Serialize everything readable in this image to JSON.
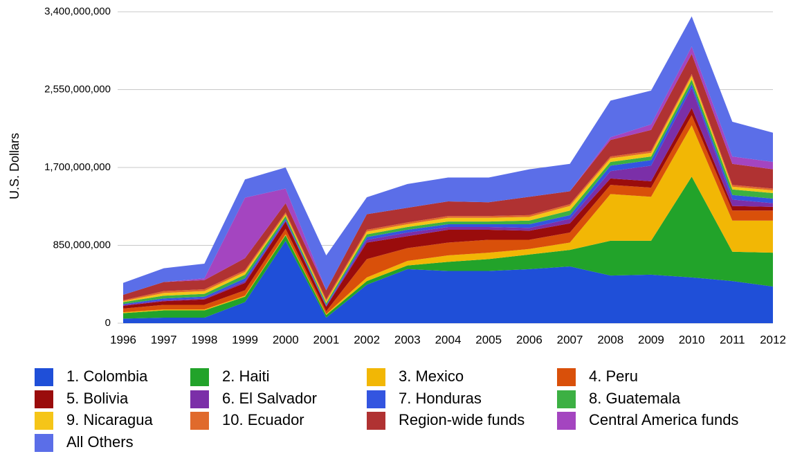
{
  "chart_data": {
    "type": "stacked_area",
    "y_label": "U.S. Dollars",
    "x": [
      1996,
      1997,
      1998,
      1999,
      2000,
      2001,
      2002,
      2003,
      2004,
      2005,
      2006,
      2007,
      2008,
      2009,
      2010,
      2011,
      2012
    ],
    "xlim": [
      1996,
      2012
    ],
    "xticks": [
      1996,
      1997,
      1998,
      1999,
      2000,
      2001,
      2002,
      2003,
      2004,
      2005,
      2006,
      2007,
      2008,
      2009,
      2010,
      2011,
      2012
    ],
    "ylim": [
      0,
      3400000000
    ],
    "yticks": [
      0,
      {
        "value": 850000000,
        "label": "850,000,000"
      },
      {
        "value": 1700000000,
        "label": "1,700,000,000"
      },
      {
        "value": 2550000000,
        "label": "2,550,000,000"
      },
      {
        "value": 3400000000,
        "label": "3,400,000,000"
      }
    ],
    "grid": true,
    "legend": "bottom",
    "series": [
      {
        "name": "1. Colombia",
        "color": "#1f4fd8",
        "values": [
          50000000,
          60000000,
          60000000,
          230000000,
          900000000,
          60000000,
          420000000,
          590000000,
          570000000,
          570000000,
          590000000,
          620000000,
          520000000,
          530000000,
          500000000,
          460000000,
          400000000
        ]
      },
      {
        "name": "2. Haiti",
        "color": "#22a32a",
        "values": [
          60000000,
          80000000,
          80000000,
          60000000,
          60000000,
          30000000,
          40000000,
          40000000,
          100000000,
          130000000,
          160000000,
          180000000,
          380000000,
          370000000,
          1100000000,
          320000000,
          370000000
        ]
      },
      {
        "name": "3. Mexico",
        "color": "#f2b705",
        "values": [
          10000000,
          10000000,
          10000000,
          10000000,
          10000000,
          10000000,
          40000000,
          50000000,
          70000000,
          70000000,
          60000000,
          80000000,
          510000000,
          480000000,
          560000000,
          340000000,
          350000000
        ]
      },
      {
        "name": "4. Peru",
        "color": "#d9500a",
        "values": [
          40000000,
          50000000,
          50000000,
          60000000,
          60000000,
          30000000,
          200000000,
          140000000,
          140000000,
          140000000,
          100000000,
          110000000,
          100000000,
          100000000,
          110000000,
          110000000,
          110000000
        ]
      },
      {
        "name": "5. Bolivia",
        "color": "#9a0c0c",
        "values": [
          30000000,
          40000000,
          60000000,
          80000000,
          80000000,
          50000000,
          180000000,
          130000000,
          140000000,
          110000000,
          100000000,
          100000000,
          70000000,
          70000000,
          80000000,
          50000000,
          40000000
        ]
      },
      {
        "name": "6. El Salvador",
        "color": "#7b2fa8",
        "values": [
          10000000,
          10000000,
          10000000,
          20000000,
          10000000,
          10000000,
          30000000,
          40000000,
          30000000,
          30000000,
          30000000,
          50000000,
          80000000,
          170000000,
          220000000,
          70000000,
          40000000
        ]
      },
      {
        "name": "7. Honduras",
        "color": "#3355e0",
        "values": [
          10000000,
          20000000,
          20000000,
          30000000,
          20000000,
          10000000,
          30000000,
          30000000,
          30000000,
          30000000,
          40000000,
          40000000,
          60000000,
          60000000,
          40000000,
          50000000,
          50000000
        ]
      },
      {
        "name": "8. Guatemala",
        "color": "#3cb043",
        "values": [
          20000000,
          30000000,
          30000000,
          40000000,
          30000000,
          20000000,
          30000000,
          30000000,
          30000000,
          30000000,
          40000000,
          50000000,
          40000000,
          40000000,
          50000000,
          60000000,
          60000000
        ]
      },
      {
        "name": "9. Nicaragua",
        "color": "#f5c518",
        "values": [
          10000000,
          30000000,
          30000000,
          30000000,
          20000000,
          20000000,
          30000000,
          30000000,
          40000000,
          40000000,
          40000000,
          50000000,
          40000000,
          40000000,
          40000000,
          30000000,
          30000000
        ]
      },
      {
        "name": "10. Ecuador",
        "color": "#e06a2c",
        "values": [
          10000000,
          20000000,
          20000000,
          20000000,
          20000000,
          20000000,
          20000000,
          20000000,
          20000000,
          20000000,
          20000000,
          20000000,
          20000000,
          20000000,
          20000000,
          20000000,
          20000000
        ]
      },
      {
        "name": "Region-wide funds",
        "color": "#b03232",
        "values": [
          60000000,
          100000000,
          100000000,
          130000000,
          100000000,
          100000000,
          170000000,
          160000000,
          160000000,
          150000000,
          200000000,
          140000000,
          180000000,
          230000000,
          220000000,
          230000000,
          210000000
        ]
      },
      {
        "name": "Central America funds",
        "color": "#a445c0",
        "values": [
          0,
          0,
          20000000,
          660000000,
          160000000,
          0,
          0,
          0,
          0,
          0,
          0,
          0,
          30000000,
          60000000,
          80000000,
          80000000,
          80000000
        ]
      },
      {
        "name": "All Others",
        "color": "#5b6ee8",
        "values": [
          130000000,
          150000000,
          160000000,
          200000000,
          230000000,
          380000000,
          185000000,
          260000000,
          260000000,
          270000000,
          300000000,
          300000000,
          400000000,
          370000000,
          330000000,
          380000000,
          320000000
        ]
      }
    ]
  }
}
